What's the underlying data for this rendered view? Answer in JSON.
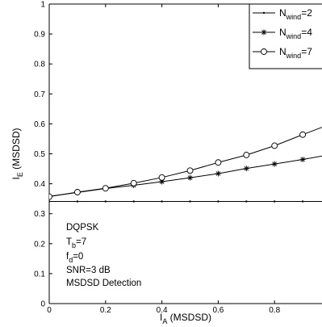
{
  "chart_data": {
    "type": "line",
    "xlabel": "I",
    "xlabel_sub": "A",
    "xlabel_suffix": " (MSDSD)",
    "ylabel": "I",
    "ylabel_sub": "E",
    "ylabel_suffix": " (MSDSD)",
    "xlim": [
      0,
      1
    ],
    "ylim": [
      0,
      1
    ],
    "x_ticks": [
      0,
      0.2,
      0.4,
      0.6,
      0.8
    ],
    "x_tick_labels": [
      "0",
      "0.2",
      "0.4",
      "0.6",
      "0.8"
    ],
    "y_ticks": [
      0,
      0.1,
      0.2,
      0.3,
      0.4,
      0.5,
      0.6,
      0.7,
      0.8,
      0.9,
      1
    ],
    "y_tick_labels": [
      "0",
      "0.1",
      "0.2",
      "0.3",
      "0.4",
      "0.5",
      "0.6",
      "0.7",
      "0.8",
      "0.9",
      "1"
    ],
    "grid": false,
    "legend_position": "top-right",
    "series": [
      {
        "name": "N",
        "name_sub": "wind",
        "name_suffix": "=2",
        "marker": "dot",
        "x": [
          0,
          0.1,
          0.2,
          0.3,
          0.4,
          0.5,
          0.6,
          0.7,
          0.8,
          0.9,
          1.0
        ],
        "y": [
          0.341,
          0.341,
          0.341,
          0.341,
          0.341,
          0.341,
          0.341,
          0.341,
          0.341,
          0.341,
          0.341
        ]
      },
      {
        "name": "N",
        "name_sub": "wind",
        "name_suffix": "=4",
        "marker": "star",
        "x": [
          0,
          0.1,
          0.2,
          0.3,
          0.4,
          0.5,
          0.6,
          0.7,
          0.8,
          0.9,
          1.0
        ],
        "y": [
          0.358,
          0.371,
          0.384,
          0.395,
          0.407,
          0.42,
          0.434,
          0.451,
          0.466,
          0.481,
          0.498
        ]
      },
      {
        "name": "N",
        "name_sub": "wind",
        "name_suffix": "=7",
        "marker": "circle",
        "x": [
          0,
          0.1,
          0.2,
          0.3,
          0.4,
          0.5,
          0.6,
          0.7,
          0.8,
          0.9,
          1.0
        ],
        "y": [
          0.357,
          0.372,
          0.385,
          0.402,
          0.421,
          0.444,
          0.471,
          0.496,
          0.527,
          0.564,
          0.6
        ]
      }
    ],
    "annotations": [
      {
        "text": "DQPSK"
      },
      {
        "text": "T",
        "sub": "b",
        "suffix": "=7"
      },
      {
        "text": "f",
        "sub": "d",
        "suffix": "=0"
      },
      {
        "text": "SNR=3 dB"
      },
      {
        "text": "MSDSD Detection"
      }
    ]
  }
}
